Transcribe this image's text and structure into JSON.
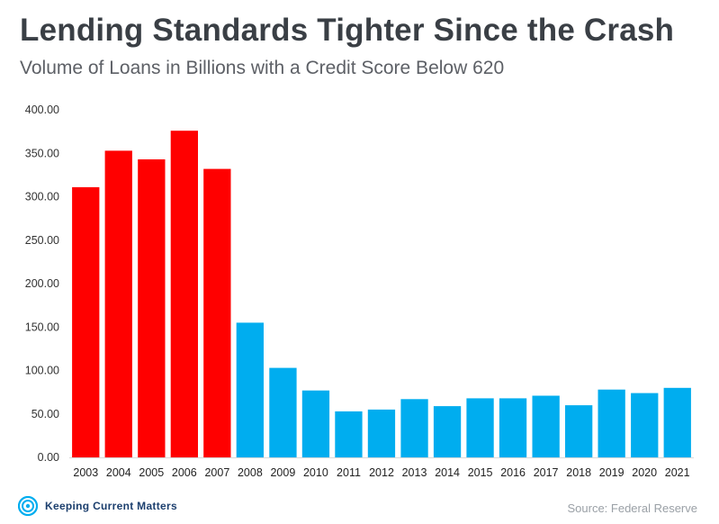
{
  "title": "Lending Standards Tighter Since the Crash",
  "subtitle": "Volume of Loans in Billions with a Credit Score Below 620",
  "source": "Source: Federal Reserve",
  "brand": "Keeping Current Matters",
  "colors": {
    "pre_crash": "#ff0000",
    "post_crash": "#00adef",
    "title": "#3a3f45",
    "brand": "#1c3f6e"
  },
  "chart_data": {
    "type": "bar",
    "title": "Lending Standards Tighter Since the Crash",
    "subtitle": "Volume of Loans in Billions with a Credit Score Below 620",
    "categories": [
      "2003",
      "2004",
      "2005",
      "2006",
      "2007",
      "2008",
      "2009",
      "2010",
      "2011",
      "2012",
      "2013",
      "2014",
      "2015",
      "2016",
      "2017",
      "2018",
      "2019",
      "2020",
      "2021"
    ],
    "values": [
      311,
      353,
      343,
      376,
      332,
      155,
      103,
      77,
      53,
      55,
      67,
      59,
      68,
      68,
      71,
      60,
      78,
      74,
      80
    ],
    "ylim": [
      0,
      400
    ],
    "yticks": [
      "0.00",
      "50.00",
      "100.00",
      "150.00",
      "200.00",
      "250.00",
      "300.00",
      "350.00",
      "400.00"
    ],
    "grid": false,
    "xlabel": "",
    "ylabel": ""
  }
}
